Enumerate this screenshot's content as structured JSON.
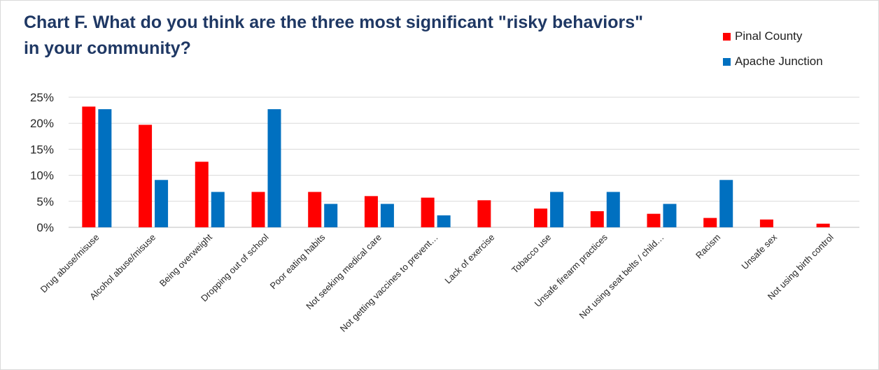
{
  "chart_data": {
    "type": "bar",
    "title": "Chart F. What do you think are the three most significant \"risky behaviors\" in your community?",
    "xlabel": "",
    "ylabel": "",
    "ylim": [
      0,
      25
    ],
    "y_ticks": [
      "0%",
      "5%",
      "10%",
      "15%",
      "20%",
      "25%"
    ],
    "grid": true,
    "legend_position": "top-right",
    "categories": [
      "Drug abuse/misuse",
      "Alcohol abuse/misuse",
      "Being overweight",
      "Dropping out of school",
      "Poor eating habits",
      "Not seeking medical care",
      "Not getting vaccines to prevent…",
      "Lack of exercise",
      "Tobacco use",
      "Unsafe firearm practices",
      "Not using seat belts / child…",
      "Racism",
      "Unsafe sex",
      "Not using birth control"
    ],
    "series": [
      {
        "name": "Pinal County",
        "color": "#ff0000",
        "values": [
          23.2,
          19.7,
          12.6,
          6.8,
          6.8,
          6.0,
          5.7,
          5.2,
          3.6,
          3.1,
          2.6,
          1.8,
          1.5,
          0.7
        ]
      },
      {
        "name": "Apache Junction",
        "color": "#0070c0",
        "values": [
          22.7,
          9.1,
          6.8,
          22.7,
          4.5,
          4.5,
          2.3,
          0,
          6.8,
          6.8,
          4.5,
          9.1,
          0,
          0
        ]
      }
    ]
  }
}
